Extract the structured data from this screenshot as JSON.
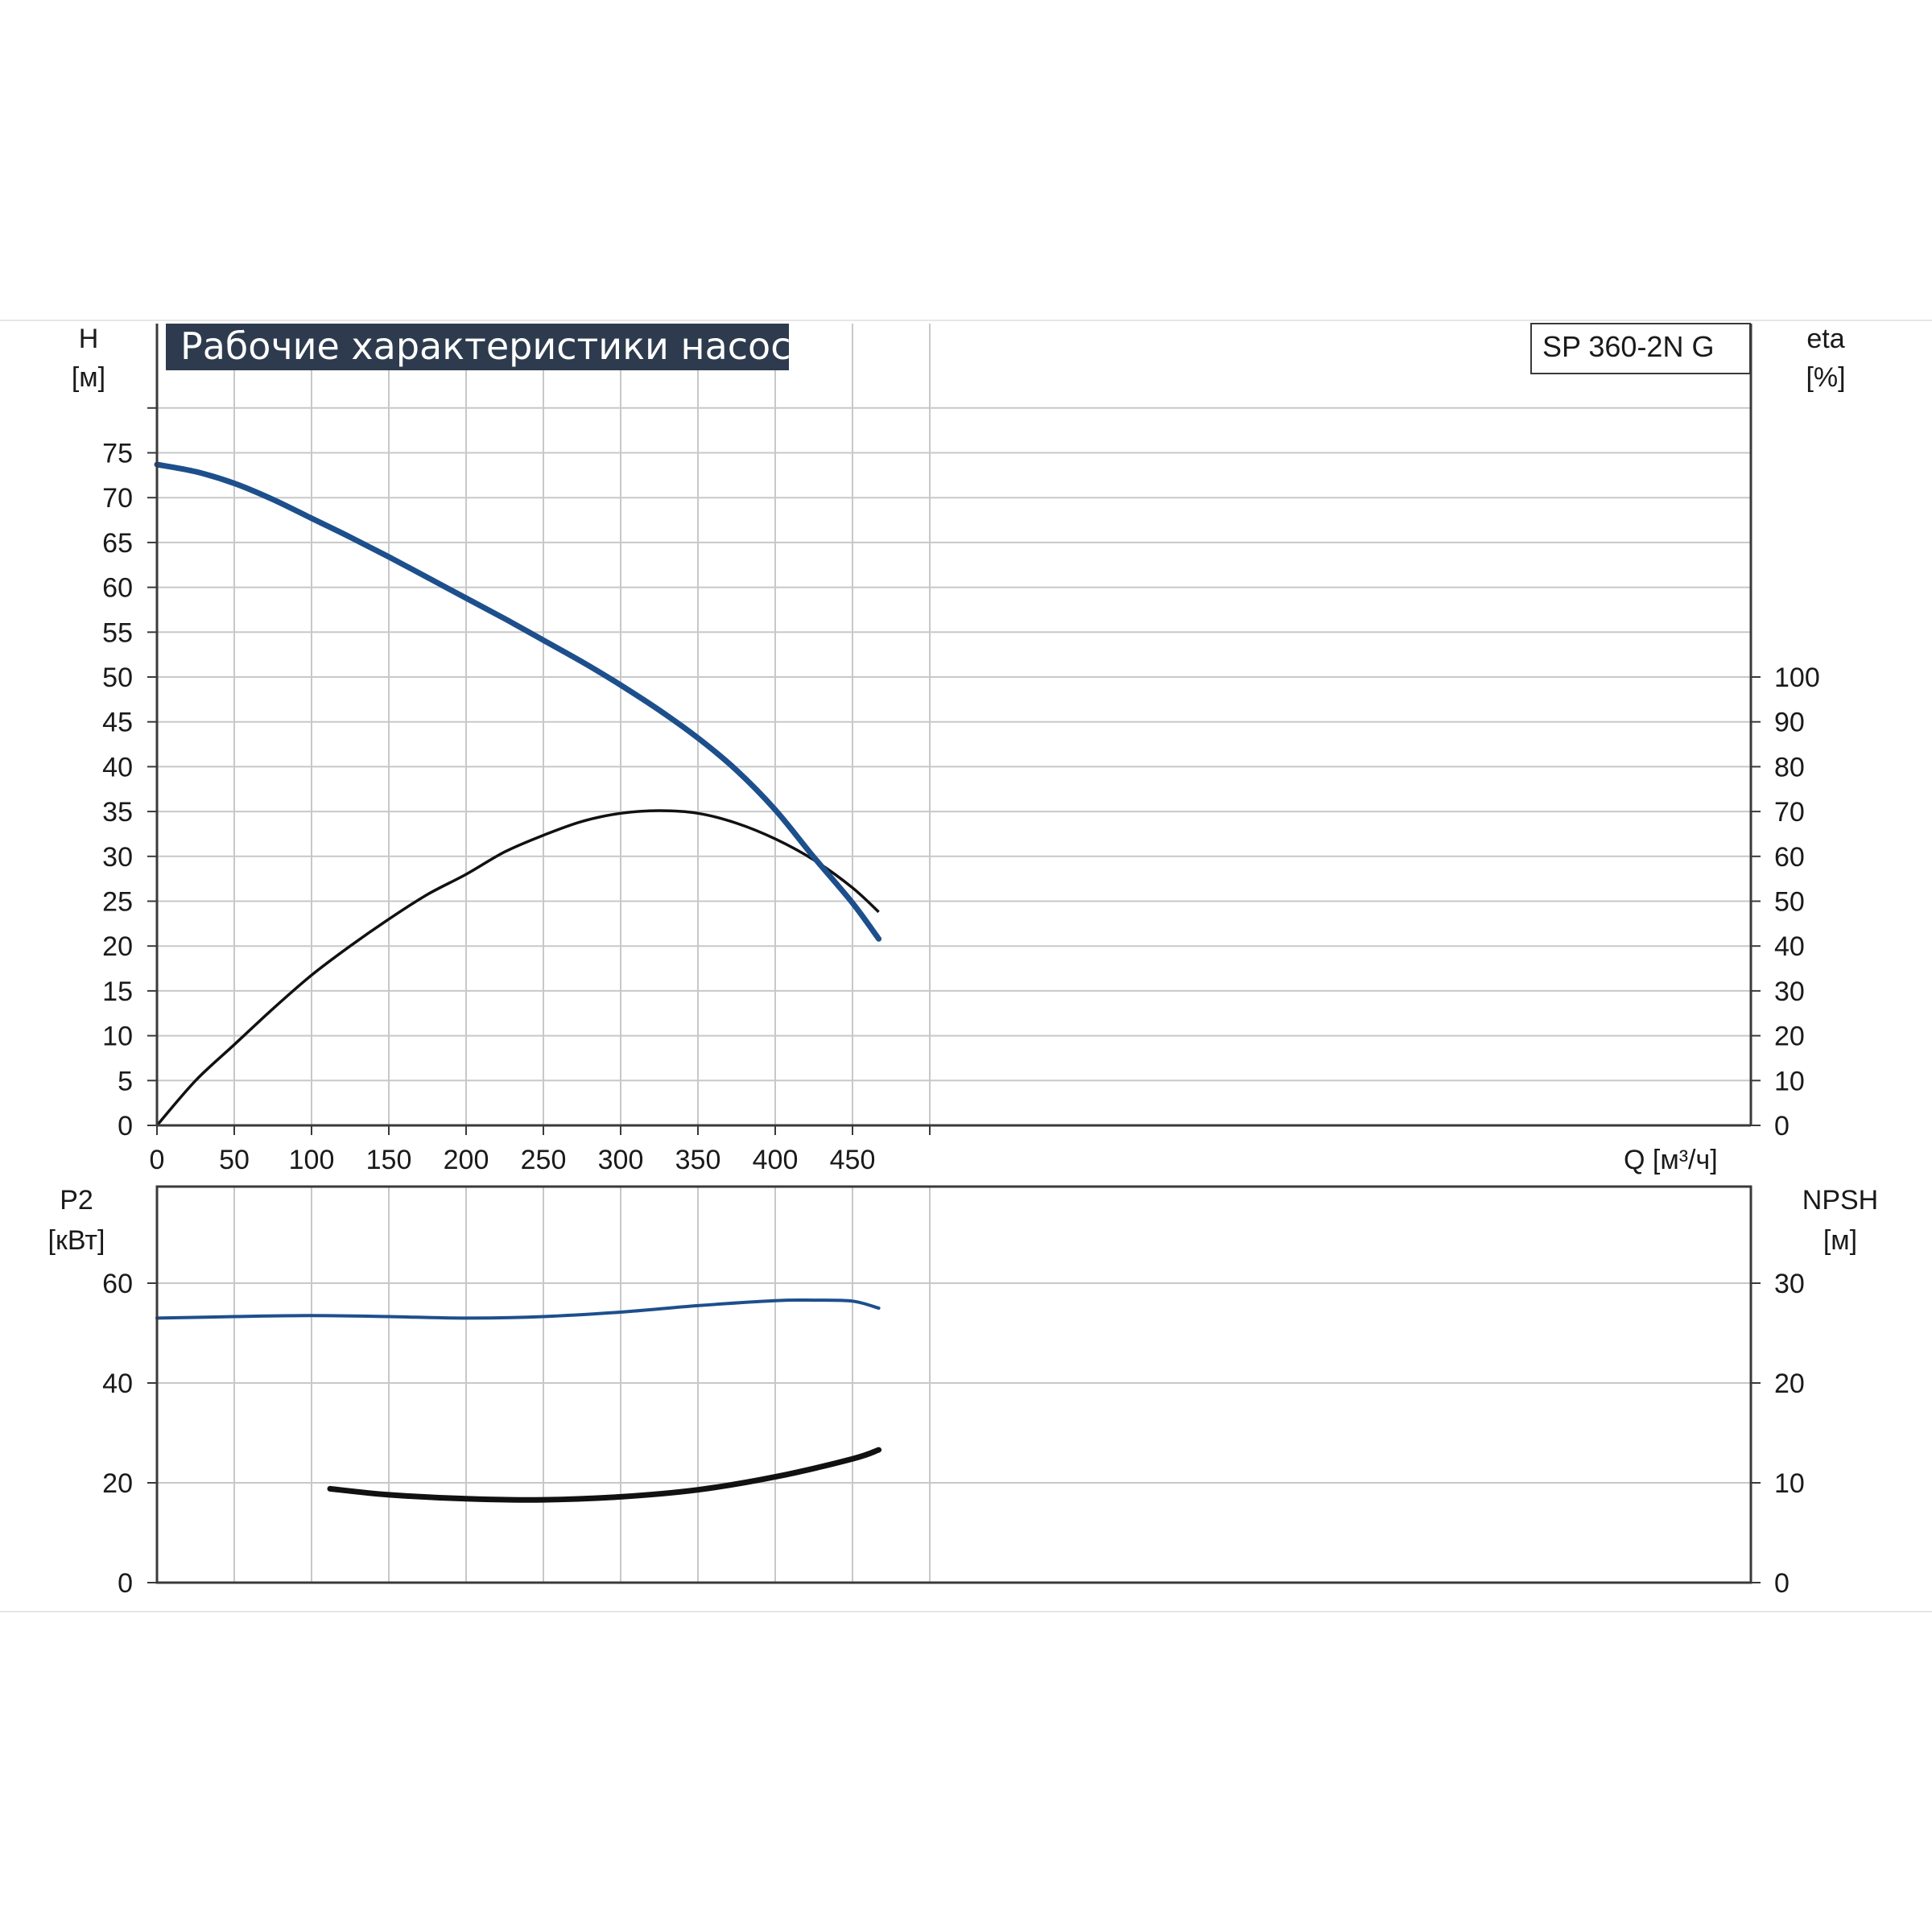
{
  "colors": {
    "grid": "#c8c8c8",
    "frame": "#3a3a3a",
    "head_curve": "#1d4f8c",
    "efficiency_curve": "#111111",
    "power_curve": "#1d4f8c",
    "npsh_curve": "#111111",
    "title_bg": "#2e3b4e",
    "title_text": "#ffffff"
  },
  "chart_data": [
    {
      "type": "line",
      "title": "Рабочие характеристики насоса",
      "model_label": "SP 360-2N G",
      "xlabel": "Q [м³/ч]",
      "ylabel_name": "H",
      "ylabel_unit": "[м]",
      "y2label_name": "eta",
      "y2label_unit": "[%]",
      "xlim": [
        0,
        500
      ],
      "ylim": [
        0,
        80
      ],
      "y2lim": [
        0,
        100
      ],
      "x_ticks": [
        "0",
        "50",
        "100",
        "150",
        "200",
        "250",
        "300",
        "350",
        "400",
        "450"
      ],
      "y_ticks": [
        "0",
        "5",
        "10",
        "15",
        "20",
        "25",
        "30",
        "35",
        "40",
        "45",
        "50",
        "55",
        "60",
        "65",
        "70",
        "75"
      ],
      "y2_ticks": [
        "0",
        "10",
        "20",
        "30",
        "40",
        "50",
        "60",
        "70",
        "80",
        "90",
        "100"
      ],
      "grid": true,
      "series": [
        {
          "axis": "left",
          "x": [
            0,
            25,
            50,
            75,
            100,
            125,
            150,
            175,
            200,
            225,
            250,
            275,
            300,
            325,
            350,
            375,
            400,
            425,
            450,
            467
          ],
          "values": [
            73.7,
            72.9,
            71.6,
            69.8,
            67.7,
            65.6,
            63.4,
            61.1,
            58.8,
            56.5,
            54.1,
            51.7,
            49.1,
            46.3,
            43.2,
            39.6,
            35.2,
            29.9,
            24.8,
            20.8
          ]
        },
        {
          "axis": "right",
          "x": [
            0,
            25,
            50,
            75,
            100,
            125,
            150,
            175,
            200,
            225,
            250,
            275,
            300,
            325,
            350,
            375,
            400,
            425,
            450,
            467
          ],
          "values": [
            0,
            10,
            18,
            26,
            33.5,
            40,
            46,
            51.5,
            56,
            61,
            64.7,
            67.8,
            69.6,
            70.2,
            69.6,
            67.4,
            63.9,
            59.2,
            53,
            47.6
          ]
        }
      ]
    },
    {
      "type": "line",
      "xlim": [
        0,
        500
      ],
      "ylabel_name": "P2",
      "ylabel_unit": "[кВт]",
      "y2label_name": "NPSH",
      "y2label_unit": "[м]",
      "ylim": [
        0,
        80
      ],
      "y2lim": [
        0,
        40
      ],
      "y_ticks": [
        "0",
        "20",
        "40",
        "60"
      ],
      "y2_ticks": [
        "0",
        "10",
        "20",
        "30"
      ],
      "grid": true,
      "series": [
        {
          "axis": "left",
          "x": [
            0,
            50,
            100,
            150,
            200,
            250,
            300,
            350,
            400,
            425,
            450,
            467
          ],
          "values": [
            53,
            53.3,
            53.5,
            53.3,
            53,
            53.3,
            54.2,
            55.5,
            56.5,
            56.6,
            56.4,
            55
          ]
        },
        {
          "axis": "right",
          "x": [
            112,
            150,
            200,
            250,
            300,
            350,
            400,
            450,
            467
          ],
          "values": [
            9.4,
            8.8,
            8.4,
            8.3,
            8.6,
            9.3,
            10.6,
            12.4,
            13.3
          ]
        }
      ]
    }
  ]
}
